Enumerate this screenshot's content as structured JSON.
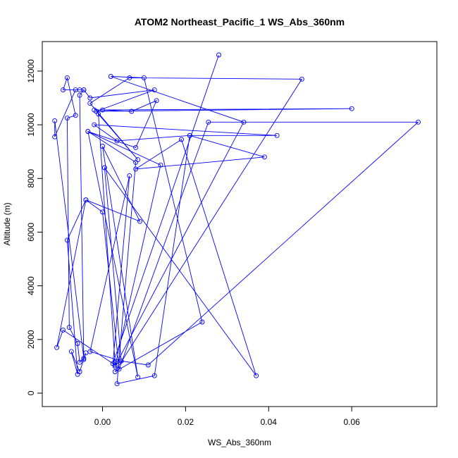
{
  "chart_data": {
    "type": "line",
    "title": "ATOM2 Northeast_Pacific_1 WS_Abs_360nm",
    "xlabel": "WS_Abs_360nm",
    "ylabel": "Altitude (m)",
    "xlim": [
      -0.0145,
      0.0805
    ],
    "ylim": [
      -500,
      13100
    ],
    "xticks": [
      0.0,
      0.02,
      0.04,
      0.06
    ],
    "xtick_labels": [
      "0.00",
      "0.02",
      "0.04",
      "0.06"
    ],
    "yticks": [
      0,
      2000,
      4000,
      6000,
      8000,
      10000,
      12000
    ],
    "ytick_labels": [
      "0",
      "2000",
      "4000",
      "6000",
      "8000",
      "10000",
      "12000"
    ],
    "grid": false,
    "series_color": "#0000ff",
    "marker": "open-circle",
    "series": [
      {
        "x": [
          0.028,
          0.0025,
          0.0065,
          -0.003,
          0.0045,
          0.003,
          -0.0095,
          -0.011,
          -0.004,
          -0.0085,
          -0.006,
          -0.0075,
          -0.0055,
          -0.004,
          -0.0045,
          -0.0055,
          -0.0045,
          -0.0065,
          -0.0115,
          -0.0115,
          -0.0045,
          -0.0055,
          -0.006,
          -0.008,
          -0.0085,
          -0.0065,
          -0.0085,
          -0.0095,
          -0.0055,
          -0.0045,
          -0.003,
          0.0125,
          -0.0015,
          0.06,
          -0.002,
          0.0,
          0.007,
          0.013,
          0.008,
          -0.0035,
          0.0085,
          0.0,
          0.009,
          -0.004,
          0.0,
          0.004,
          0.0255,
          0.076,
          0.011,
          0.0045,
          0.0005,
          0.037,
          0.019,
          0.008,
          0.039,
          0.021,
          0.0035,
          -0.002,
          0.042,
          0.021,
          0.0125,
          0.0035,
          0.008,
          -0.0035,
          0.014,
          0.003,
          0.034,
          0.002,
          0.01,
          0.024,
          0.003,
          0.048,
          0.0065,
          -0.003,
          0.0085,
          -0.001,
          0.003
        ],
        "y": [
          12600,
          1100,
          8100,
          1550,
          1200,
          1050,
          2350,
          1700,
          7200,
          5700,
          700,
          1550,
          800,
          1500,
          1250,
          11100,
          11300,
          11300,
          9550,
          10150,
          1300,
          1150,
          1850,
          2450,
          10250,
          10350,
          11750,
          11300,
          11300,
          11300,
          11000,
          11300,
          10500,
          10600,
          10550,
          10550,
          10500,
          10900,
          9150,
          9750,
          600,
          9200,
          6400,
          7200,
          6750,
          900,
          10100,
          10100,
          1050,
          1200,
          8400,
          650,
          9450,
          8350,
          8800,
          9600,
          9400,
          10000,
          9600,
          9600,
          650,
          350,
          8600,
          9750,
          8500,
          1000,
          10100,
          11800,
          11750,
          2650,
          800,
          11700,
          11750,
          10800,
          8700,
          10400,
          1150
        ]
      }
    ]
  }
}
